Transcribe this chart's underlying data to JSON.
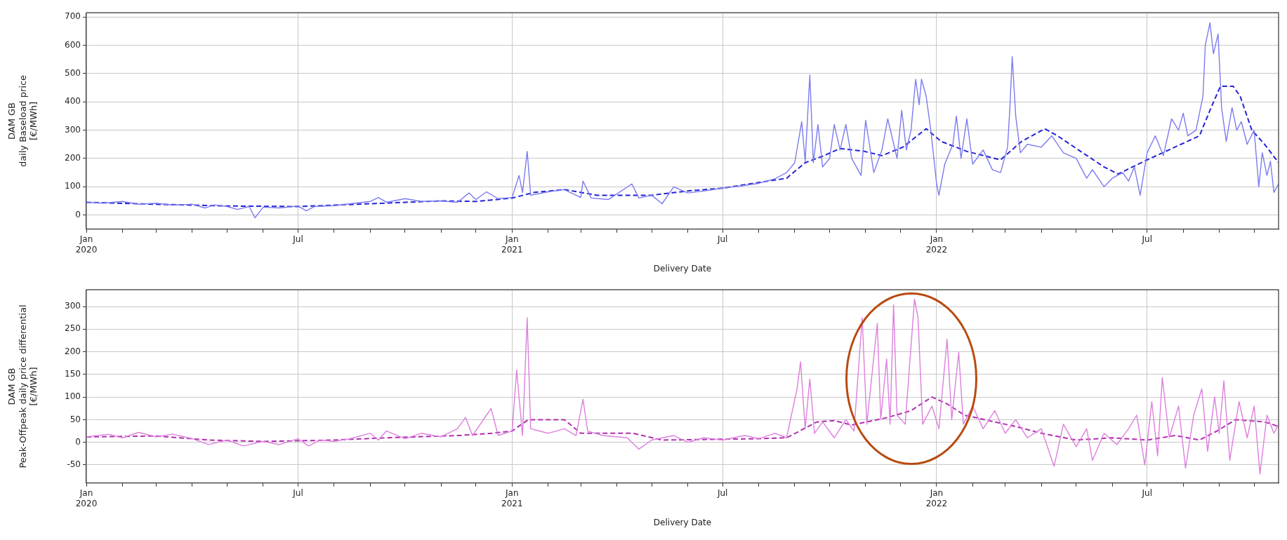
{
  "chart_data": [
    {
      "type": "line",
      "xlabel": "Delivery Date",
      "ylabel": "DAM GB\ndaily Baseload price\n[€/MWh]",
      "xlim": [
        "2020-01-01",
        "2022-10-22"
      ],
      "ylim": [
        -50,
        715
      ],
      "yticks": [
        0,
        100,
        200,
        300,
        400,
        500,
        600,
        700
      ],
      "grid": true,
      "xticks": [
        {
          "value": "2020-01",
          "label": "Jan\n2020"
        },
        {
          "value": "2020-02",
          "label": null
        },
        {
          "value": "2020-03",
          "label": null
        },
        {
          "value": "2020-04",
          "label": null
        },
        {
          "value": "2020-05",
          "label": null
        },
        {
          "value": "2020-06",
          "label": null
        },
        {
          "value": "2020-07",
          "label": "Jul"
        },
        {
          "value": "2020-08",
          "label": null
        },
        {
          "value": "2020-09",
          "label": null
        },
        {
          "value": "2020-10",
          "label": null
        },
        {
          "value": "2020-11",
          "label": null
        },
        {
          "value": "2020-12",
          "label": null
        },
        {
          "value": "2021-01",
          "label": "Jan\n2021"
        },
        {
          "value": "2021-02",
          "label": null
        },
        {
          "value": "2021-03",
          "label": null
        },
        {
          "value": "2021-04",
          "label": null
        },
        {
          "value": "2021-05",
          "label": null
        },
        {
          "value": "2021-06",
          "label": null
        },
        {
          "value": "2021-07",
          "label": "Jul"
        },
        {
          "value": "2021-08",
          "label": null
        },
        {
          "value": "2021-09",
          "label": null
        },
        {
          "value": "2021-10",
          "label": null
        },
        {
          "value": "2021-11",
          "label": null
        },
        {
          "value": "2021-12",
          "label": null
        },
        {
          "value": "2022-01",
          "label": "Jan\n2022"
        },
        {
          "value": "2022-02",
          "label": null
        },
        {
          "value": "2022-03",
          "label": null
        },
        {
          "value": "2022-04",
          "label": null
        },
        {
          "value": "2022-05",
          "label": null
        },
        {
          "value": "2022-06",
          "label": null
        },
        {
          "value": "2022-07",
          "label": "Jul"
        },
        {
          "value": "2022-08",
          "label": null
        },
        {
          "value": "2022-09",
          "label": null
        },
        {
          "value": "2022-10",
          "label": null
        }
      ],
      "series": [
        {
          "color": "#7b7bef",
          "line_style": "solid",
          "x": [
            "2020-01-01",
            "2020-01-15",
            "2020-02-01",
            "2020-02-15",
            "2020-03-01",
            "2020-03-15",
            "2020-04-01",
            "2020-04-12",
            "2020-04-20",
            "2020-05-01",
            "2020-05-10",
            "2020-05-20",
            "2020-05-25",
            "2020-06-01",
            "2020-06-15",
            "2020-07-01",
            "2020-07-08",
            "2020-07-15",
            "2020-08-01",
            "2020-08-15",
            "2020-09-01",
            "2020-09-08",
            "2020-09-15",
            "2020-10-01",
            "2020-10-15",
            "2020-11-01",
            "2020-11-15",
            "2020-11-25",
            "2020-12-01",
            "2020-12-10",
            "2020-12-20",
            "2021-01-01",
            "2021-01-07",
            "2021-01-10",
            "2021-01-14",
            "2021-01-17",
            "2021-02-01",
            "2021-02-15",
            "2021-03-01",
            "2021-03-03",
            "2021-03-10",
            "2021-03-25",
            "2021-04-14",
            "2021-04-20",
            "2021-05-01",
            "2021-05-10",
            "2021-05-20",
            "2021-06-01",
            "2021-06-15",
            "2021-07-01",
            "2021-07-15",
            "2021-08-01",
            "2021-08-15",
            "2021-08-25",
            "2021-09-01",
            "2021-09-07",
            "2021-09-10",
            "2021-09-14",
            "2021-09-17",
            "2021-09-21",
            "2021-09-25",
            "2021-10-01",
            "2021-10-05",
            "2021-10-10",
            "2021-10-15",
            "2021-10-20",
            "2021-10-28",
            "2021-11-01",
            "2021-11-08",
            "2021-11-15",
            "2021-11-20",
            "2021-11-28",
            "2021-12-02",
            "2021-12-06",
            "2021-12-10",
            "2021-12-14",
            "2021-12-17",
            "2021-12-19",
            "2021-12-23",
            "2021-12-27",
            "2022-01-01",
            "2022-01-03",
            "2022-01-08",
            "2022-01-15",
            "2022-01-18",
            "2022-01-22",
            "2022-01-27",
            "2022-02-01",
            "2022-02-10",
            "2022-02-18",
            "2022-02-25",
            "2022-03-03",
            "2022-03-05",
            "2022-03-07",
            "2022-03-10",
            "2022-03-14",
            "2022-03-20",
            "2022-04-01",
            "2022-04-10",
            "2022-04-20",
            "2022-05-01",
            "2022-05-10",
            "2022-05-15",
            "2022-05-25",
            "2022-06-01",
            "2022-06-10",
            "2022-06-15",
            "2022-06-20",
            "2022-06-25",
            "2022-07-01",
            "2022-07-08",
            "2022-07-15",
            "2022-07-22",
            "2022-07-28",
            "2022-08-01",
            "2022-08-05",
            "2022-08-12",
            "2022-08-18",
            "2022-08-20",
            "2022-08-24",
            "2022-08-27",
            "2022-08-31",
            "2022-09-03",
            "2022-09-07",
            "2022-09-12",
            "2022-09-16",
            "2022-09-20",
            "2022-09-25",
            "2022-10-01",
            "2022-10-05",
            "2022-10-08",
            "2022-10-12",
            "2022-10-15",
            "2022-10-18",
            "2022-10-22"
          ],
          "values": [
            45,
            42,
            48,
            38,
            42,
            35,
            38,
            25,
            36,
            30,
            20,
            30,
            -10,
            28,
            25,
            32,
            15,
            30,
            33,
            40,
            48,
            62,
            45,
            58,
            48,
            50,
            45,
            78,
            55,
            82,
            58,
            62,
            140,
            80,
            225,
            70,
            82,
            90,
            62,
            120,
            60,
            55,
            110,
            60,
            70,
            40,
            100,
            78,
            85,
            95,
            102,
            112,
            128,
            150,
            185,
            330,
            190,
            495,
            185,
            320,
            170,
            200,
            320,
            230,
            320,
            200,
            140,
            335,
            150,
            230,
            340,
            200,
            370,
            230,
            300,
            480,
            390,
            480,
            420,
            300,
            110,
            70,
            180,
            250,
            350,
            200,
            340,
            180,
            230,
            160,
            150,
            240,
            380,
            560,
            350,
            220,
            250,
            240,
            280,
            220,
            200,
            130,
            160,
            100,
            130,
            150,
            120,
            170,
            70,
            220,
            280,
            210,
            340,
            300,
            360,
            280,
            300,
            420,
            600,
            680,
            570,
            640,
            380,
            260,
            380,
            300,
            330,
            250,
            300,
            100,
            220,
            140,
            190,
            80,
            110
          ]
        },
        {
          "color": "#2323d8",
          "line_style": "dashed",
          "x": [
            "2020-01-01",
            "2020-03-01",
            "2020-05-01",
            "2020-07-01",
            "2020-09-01",
            "2020-11-01",
            "2020-12-01",
            "2021-01-01",
            "2021-01-20",
            "2021-02-15",
            "2021-03-15",
            "2021-05-01",
            "2021-06-01",
            "2021-07-01",
            "2021-08-01",
            "2021-08-25",
            "2021-09-10",
            "2021-09-25",
            "2021-10-10",
            "2021-10-31",
            "2021-11-15",
            "2021-12-03",
            "2021-12-23",
            "2022-01-05",
            "2022-01-27",
            "2022-02-25",
            "2022-03-15",
            "2022-04-04",
            "2022-04-15",
            "2022-05-03",
            "2022-05-25",
            "2022-06-06",
            "2022-07-01",
            "2022-08-15",
            "2022-08-25",
            "2022-09-02",
            "2022-09-13",
            "2022-09-19",
            "2022-09-29",
            "2022-10-10",
            "2022-10-22"
          ],
          "values": [
            45,
            38,
            32,
            30,
            40,
            50,
            48,
            60,
            80,
            90,
            70,
            70,
            85,
            95,
            115,
            130,
            185,
            208,
            235,
            225,
            210,
            240,
            305,
            260,
            225,
            195,
            260,
            305,
            280,
            230,
            170,
            145,
            195,
            280,
            380,
            455,
            455,
            420,
            300,
            250,
            185
          ]
        }
      ]
    },
    {
      "type": "line",
      "xlabel": "Delivery Date",
      "ylabel": "DAM GB\nPeak-Offpeak daily price differential\n[€/MWh]",
      "xlim": [
        "2020-01-01",
        "2022-10-22"
      ],
      "ylim": [
        -90,
        337
      ],
      "yticks": [
        -50,
        0,
        50,
        100,
        150,
        200,
        250,
        300
      ],
      "grid": true,
      "xticks": [
        {
          "value": "2020-01",
          "label": "Jan\n2020"
        },
        {
          "value": "2020-02",
          "label": null
        },
        {
          "value": "2020-03",
          "label": null
        },
        {
          "value": "2020-04",
          "label": null
        },
        {
          "value": "2020-05",
          "label": null
        },
        {
          "value": "2020-06",
          "label": null
        },
        {
          "value": "2020-07",
          "label": "Jul"
        },
        {
          "value": "2020-08",
          "label": null
        },
        {
          "value": "2020-09",
          "label": null
        },
        {
          "value": "2020-10",
          "label": null
        },
        {
          "value": "2020-11",
          "label": null
        },
        {
          "value": "2020-12",
          "label": null
        },
        {
          "value": "2021-01",
          "label": "Jan\n2021"
        },
        {
          "value": "2021-02",
          "label": null
        },
        {
          "value": "2021-03",
          "label": null
        },
        {
          "value": "2021-04",
          "label": null
        },
        {
          "value": "2021-05",
          "label": null
        },
        {
          "value": "2021-06",
          "label": null
        },
        {
          "value": "2021-07",
          "label": "Jul"
        },
        {
          "value": "2021-08",
          "label": null
        },
        {
          "value": "2021-09",
          "label": null
        },
        {
          "value": "2021-10",
          "label": null
        },
        {
          "value": "2021-11",
          "label": null
        },
        {
          "value": "2021-12",
          "label": null
        },
        {
          "value": "2022-01",
          "label": "Jan\n2022"
        },
        {
          "value": "2022-02",
          "label": null
        },
        {
          "value": "2022-03",
          "label": null
        },
        {
          "value": "2022-04",
          "label": null
        },
        {
          "value": "2022-05",
          "label": null
        },
        {
          "value": "2022-06",
          "label": null
        },
        {
          "value": "2022-07",
          "label": "Jul"
        },
        {
          "value": "2022-08",
          "label": null
        },
        {
          "value": "2022-09",
          "label": null
        },
        {
          "value": "2022-10",
          "label": null
        }
      ],
      "series": [
        {
          "color": "#dd7fdd",
          "line_style": "solid",
          "x": [
            "2020-01-01",
            "2020-01-20",
            "2020-02-01",
            "2020-02-15",
            "2020-03-01",
            "2020-03-15",
            "2020-04-01",
            "2020-04-15",
            "2020-05-01",
            "2020-05-15",
            "2020-06-01",
            "2020-06-15",
            "2020-07-01",
            "2020-07-10",
            "2020-07-20",
            "2020-08-01",
            "2020-08-15",
            "2020-09-01",
            "2020-09-08",
            "2020-09-15",
            "2020-10-01",
            "2020-10-15",
            "2020-11-01",
            "2020-11-15",
            "2020-11-22",
            "2020-11-28",
            "2020-12-10",
            "2020-12-14",
            "2020-12-20",
            "2021-01-01",
            "2021-01-05",
            "2021-01-07",
            "2021-01-10",
            "2021-01-14",
            "2021-01-17",
            "2021-02-01",
            "2021-02-15",
            "2021-02-25",
            "2021-03-03",
            "2021-03-07",
            "2021-03-20",
            "2021-04-10",
            "2021-04-20",
            "2021-05-01",
            "2021-05-20",
            "2021-06-01",
            "2021-06-15",
            "2021-07-01",
            "2021-07-20",
            "2021-08-01",
            "2021-08-15",
            "2021-08-25",
            "2021-09-03",
            "2021-09-06",
            "2021-09-10",
            "2021-09-14",
            "2021-09-18",
            "2021-09-25",
            "2021-10-05",
            "2021-10-15",
            "2021-10-22",
            "2021-10-29",
            "2021-11-02",
            "2021-11-11",
            "2021-11-14",
            "2021-11-19",
            "2021-11-22",
            "2021-11-25",
            "2021-11-28",
            "2021-12-05",
            "2021-12-13",
            "2021-12-16",
            "2021-12-20",
            "2021-12-28",
            "2022-01-03",
            "2022-01-10",
            "2022-01-14",
            "2022-01-20",
            "2022-01-24",
            "2022-02-01",
            "2022-02-10",
            "2022-02-20",
            "2022-03-01",
            "2022-03-10",
            "2022-03-20",
            "2022-04-01",
            "2022-04-12",
            "2022-04-20",
            "2022-05-01",
            "2022-05-10",
            "2022-05-15",
            "2022-05-25",
            "2022-06-05",
            "2022-06-15",
            "2022-06-22",
            "2022-06-29",
            "2022-07-05",
            "2022-07-10",
            "2022-07-14",
            "2022-07-20",
            "2022-07-28",
            "2022-08-03",
            "2022-08-10",
            "2022-08-17",
            "2022-08-22",
            "2022-08-28",
            "2022-09-01",
            "2022-09-05",
            "2022-09-10",
            "2022-09-18",
            "2022-09-25",
            "2022-10-01",
            "2022-10-06",
            "2022-10-12",
            "2022-10-18",
            "2022-10-22"
          ],
          "values": [
            12,
            18,
            10,
            22,
            12,
            18,
            8,
            -5,
            5,
            -8,
            2,
            -5,
            8,
            -8,
            5,
            2,
            8,
            20,
            5,
            25,
            8,
            20,
            12,
            30,
            55,
            15,
            60,
            75,
            15,
            25,
            160,
            100,
            15,
            275,
            30,
            20,
            30,
            15,
            95,
            25,
            15,
            10,
            -15,
            5,
            15,
            0,
            10,
            5,
            15,
            8,
            20,
            10,
            118,
            178,
            30,
            140,
            20,
            45,
            10,
            50,
            25,
            275,
            40,
            263,
            50,
            184,
            40,
            304,
            60,
            40,
            316,
            276,
            40,
            80,
            30,
            228,
            50,
            199,
            40,
            80,
            30,
            70,
            20,
            50,
            10,
            30,
            -53,
            40,
            -10,
            30,
            -40,
            20,
            -5,
            30,
            60,
            -50,
            90,
            -30,
            143,
            10,
            80,
            -57,
            60,
            118,
            -20,
            100,
            20,
            136,
            -40,
            90,
            10,
            80,
            -70,
            60,
            20,
            40
          ]
        },
        {
          "color": "#b030b0",
          "line_style": "dashed",
          "x": [
            "2020-01-01",
            "2020-03-01",
            "2020-04-15",
            "2020-06-01",
            "2020-08-01",
            "2020-09-15",
            "2020-11-15",
            "2020-12-15",
            "2021-01-01",
            "2021-01-15",
            "2021-02-15",
            "2021-03-01",
            "2021-04-15",
            "2021-05-10",
            "2021-08-01",
            "2021-08-25",
            "2021-09-20",
            "2021-10-05",
            "2021-10-20",
            "2021-11-20",
            "2021-12-10",
            "2021-12-28",
            "2022-01-10",
            "2022-01-25",
            "2022-02-20",
            "2022-03-10",
            "2022-04-01",
            "2022-05-01",
            "2022-06-01",
            "2022-07-01",
            "2022-07-25",
            "2022-08-15",
            "2022-08-30",
            "2022-09-15",
            "2022-10-10",
            "2022-10-22"
          ],
          "values": [
            12,
            14,
            5,
            2,
            5,
            10,
            15,
            20,
            25,
            50,
            50,
            20,
            20,
            5,
            8,
            10,
            45,
            48,
            38,
            55,
            70,
            100,
            85,
            60,
            45,
            35,
            20,
            5,
            10,
            5,
            15,
            5,
            25,
            50,
            45,
            35
          ]
        }
      ]
    }
  ]
}
